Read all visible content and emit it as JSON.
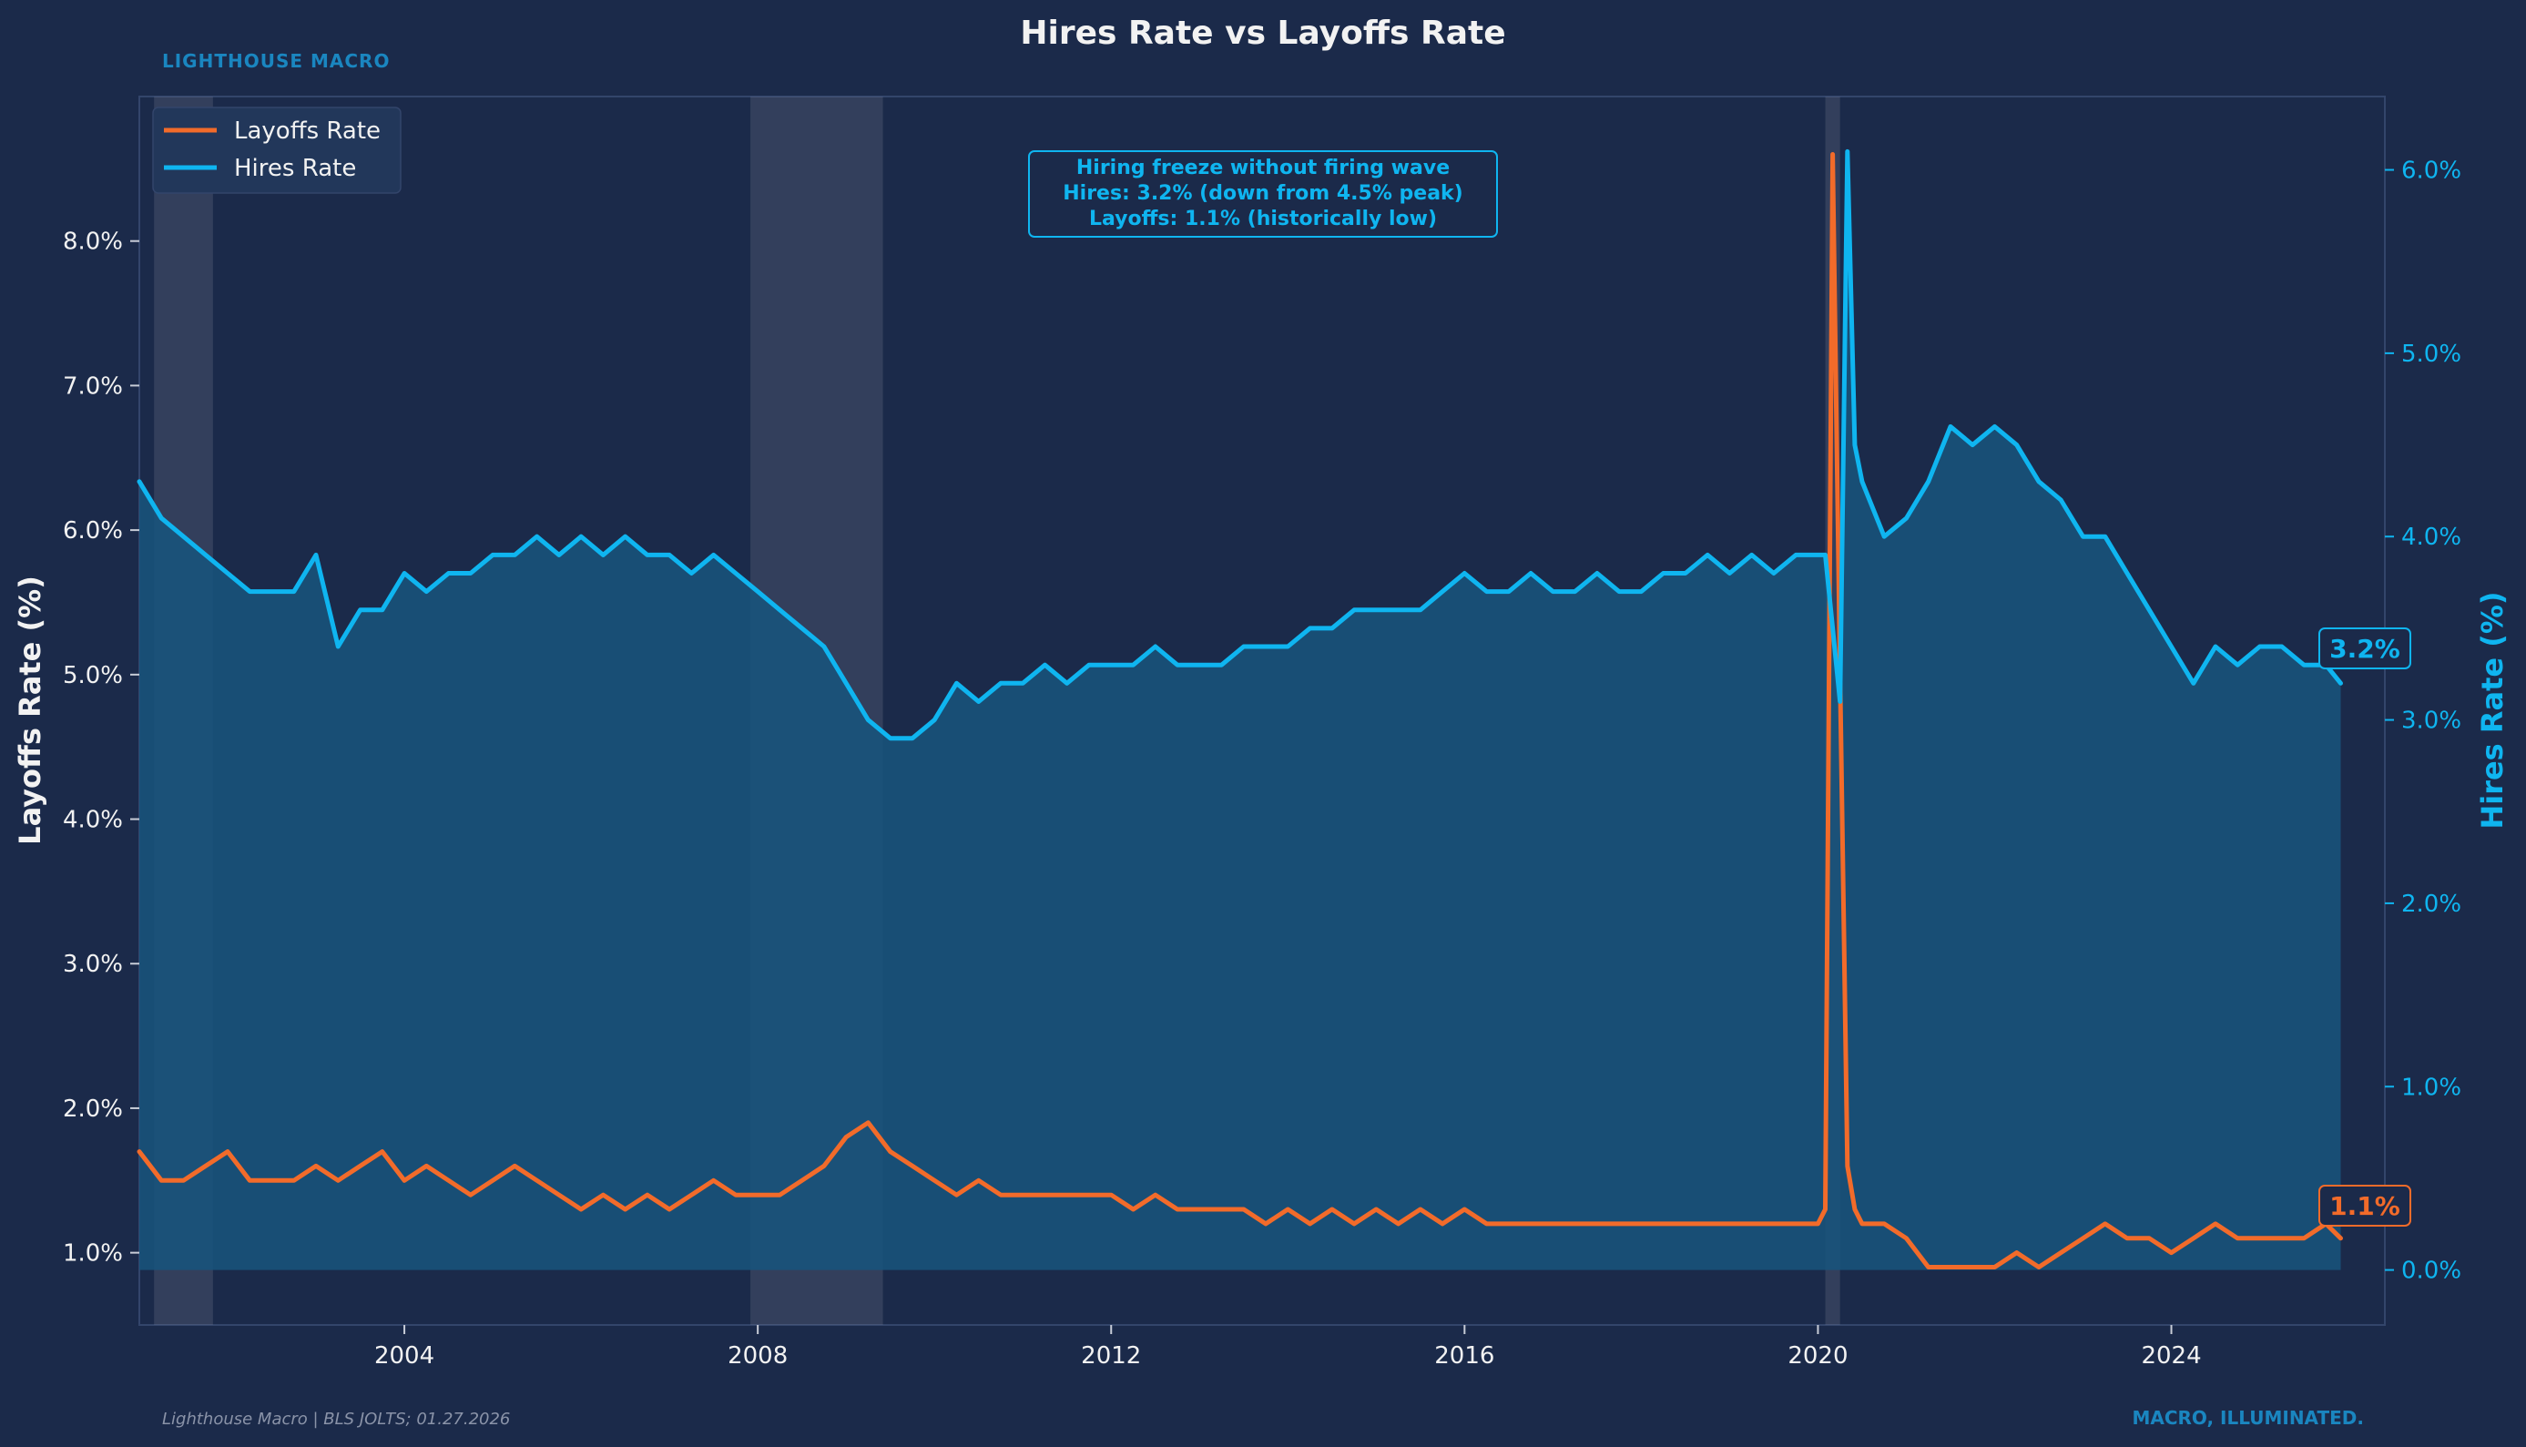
{
  "header": {
    "brand": "LIGHTHOUSE MACRO"
  },
  "footer": {
    "source": "Lighthouse Macro | BLS JOLTS; 01.27.2026",
    "tagline": "MACRO, ILLUMINATED."
  },
  "annotation": {
    "lines": [
      "Hiring freeze without firing wave",
      "Hires: 3.2% (down from 4.5% peak)",
      "Layoffs: 1.1% (historically low)"
    ]
  },
  "colors": {
    "background": "#1b2a4a",
    "layoffs": "#f26b2a",
    "hires": "#0fb5f0",
    "hires_fill": "#17557c",
    "recession": "#8a8fa0",
    "brand": "#1a86c0",
    "text": "#f2f2f2"
  },
  "chart_data": {
    "type": "line",
    "title": "Hires Rate vs Layoffs Rate",
    "x_ticks": [
      "2004",
      "2008",
      "2012",
      "2016",
      "2020",
      "2024"
    ],
    "x_range": [
      "2001-01",
      "2026-06"
    ],
    "y_left": {
      "label": "Layoffs Rate (%)",
      "range": [
        0.5,
        9.0
      ],
      "ticks": [
        "1.0%",
        "2.0%",
        "3.0%",
        "4.0%",
        "5.0%",
        "6.0%",
        "7.0%",
        "8.0%"
      ]
    },
    "y_right": {
      "label": "Hires Rate (%)",
      "range": [
        -0.3,
        6.4
      ],
      "ticks": [
        "0.0%",
        "1.0%",
        "2.0%",
        "3.0%",
        "4.0%",
        "5.0%",
        "6.0%"
      ]
    },
    "legend": {
      "position": "top-left",
      "entries": [
        "Layoffs Rate",
        "Hires Rate"
      ]
    },
    "recessions": [
      {
        "start": "2001-03",
        "end": "2001-11"
      },
      {
        "start": "2007-12",
        "end": "2009-06"
      },
      {
        "start": "2020-02",
        "end": "2020-04"
      }
    ],
    "end_labels": {
      "hires": "3.2%",
      "layoffs": "1.1%"
    },
    "series": [
      {
        "name": "Hires Rate",
        "axis": "right",
        "x": [
          "2001-01",
          "2001-04",
          "2001-07",
          "2001-10",
          "2002-01",
          "2002-04",
          "2002-07",
          "2002-10",
          "2003-01",
          "2003-04",
          "2003-07",
          "2003-10",
          "2004-01",
          "2004-04",
          "2004-07",
          "2004-10",
          "2005-01",
          "2005-04",
          "2005-07",
          "2005-10",
          "2006-01",
          "2006-04",
          "2006-07",
          "2006-10",
          "2007-01",
          "2007-04",
          "2007-07",
          "2007-10",
          "2008-01",
          "2008-04",
          "2008-07",
          "2008-10",
          "2009-01",
          "2009-04",
          "2009-07",
          "2009-10",
          "2010-01",
          "2010-04",
          "2010-07",
          "2010-10",
          "2011-01",
          "2011-04",
          "2011-07",
          "2011-10",
          "2012-01",
          "2012-04",
          "2012-07",
          "2012-10",
          "2013-01",
          "2013-04",
          "2013-07",
          "2013-10",
          "2014-01",
          "2014-04",
          "2014-07",
          "2014-10",
          "2015-01",
          "2015-04",
          "2015-07",
          "2015-10",
          "2016-01",
          "2016-04",
          "2016-07",
          "2016-10",
          "2017-01",
          "2017-04",
          "2017-07",
          "2017-10",
          "2018-01",
          "2018-04",
          "2018-07",
          "2018-10",
          "2019-01",
          "2019-04",
          "2019-07",
          "2019-10",
          "2020-01",
          "2020-02",
          "2020-03",
          "2020-04",
          "2020-05",
          "2020-06",
          "2020-07",
          "2020-10",
          "2021-01",
          "2021-04",
          "2021-07",
          "2021-10",
          "2022-01",
          "2022-04",
          "2022-07",
          "2022-10",
          "2023-01",
          "2023-04",
          "2023-07",
          "2023-10",
          "2024-01",
          "2024-04",
          "2024-07",
          "2024-10",
          "2025-01",
          "2025-04",
          "2025-07",
          "2025-10",
          "2025-12"
        ],
        "values": [
          4.3,
          4.1,
          4.0,
          3.9,
          3.8,
          3.7,
          3.7,
          3.7,
          3.9,
          3.4,
          3.6,
          3.6,
          3.8,
          3.7,
          3.8,
          3.8,
          3.9,
          3.9,
          4.0,
          3.9,
          4.0,
          3.9,
          4.0,
          3.9,
          3.9,
          3.8,
          3.9,
          3.8,
          3.7,
          3.6,
          3.5,
          3.4,
          3.2,
          3.0,
          2.9,
          2.9,
          3.0,
          3.2,
          3.1,
          3.2,
          3.2,
          3.3,
          3.2,
          3.3,
          3.3,
          3.3,
          3.4,
          3.3,
          3.3,
          3.3,
          3.4,
          3.4,
          3.4,
          3.5,
          3.5,
          3.6,
          3.6,
          3.6,
          3.6,
          3.7,
          3.8,
          3.7,
          3.7,
          3.8,
          3.7,
          3.7,
          3.8,
          3.7,
          3.7,
          3.8,
          3.8,
          3.9,
          3.8,
          3.9,
          3.8,
          3.9,
          3.9,
          3.9,
          3.5,
          3.1,
          6.1,
          4.5,
          4.3,
          4.0,
          4.1,
          4.3,
          4.6,
          4.5,
          4.6,
          4.5,
          4.3,
          4.2,
          4.0,
          4.0,
          3.8,
          3.6,
          3.4,
          3.2,
          3.4,
          3.3,
          3.4,
          3.4,
          3.3,
          3.3,
          3.2
        ]
      },
      {
        "name": "Layoffs Rate",
        "axis": "left",
        "x": [
          "2001-01",
          "2001-04",
          "2001-07",
          "2001-10",
          "2002-01",
          "2002-04",
          "2002-07",
          "2002-10",
          "2003-01",
          "2003-04",
          "2003-07",
          "2003-10",
          "2004-01",
          "2004-04",
          "2004-07",
          "2004-10",
          "2005-01",
          "2005-04",
          "2005-07",
          "2005-10",
          "2006-01",
          "2006-04",
          "2006-07",
          "2006-10",
          "2007-01",
          "2007-04",
          "2007-07",
          "2007-10",
          "2008-01",
          "2008-04",
          "2008-07",
          "2008-10",
          "2009-01",
          "2009-04",
          "2009-07",
          "2009-10",
          "2010-01",
          "2010-04",
          "2010-07",
          "2010-10",
          "2011-01",
          "2011-04",
          "2011-07",
          "2011-10",
          "2012-01",
          "2012-04",
          "2012-07",
          "2012-10",
          "2013-01",
          "2013-04",
          "2013-07",
          "2013-10",
          "2014-01",
          "2014-04",
          "2014-07",
          "2014-10",
          "2015-01",
          "2015-04",
          "2015-07",
          "2015-10",
          "2016-01",
          "2016-04",
          "2016-07",
          "2016-10",
          "2017-01",
          "2017-04",
          "2017-07",
          "2017-10",
          "2018-01",
          "2018-04",
          "2018-07",
          "2018-10",
          "2019-01",
          "2019-04",
          "2019-07",
          "2019-10",
          "2020-01",
          "2020-02",
          "2020-03",
          "2020-04",
          "2020-05",
          "2020-06",
          "2020-07",
          "2020-10",
          "2021-01",
          "2021-04",
          "2021-07",
          "2021-10",
          "2022-01",
          "2022-04",
          "2022-07",
          "2022-10",
          "2023-01",
          "2023-04",
          "2023-07",
          "2023-10",
          "2024-01",
          "2024-04",
          "2024-07",
          "2024-10",
          "2025-01",
          "2025-04",
          "2025-07",
          "2025-10",
          "2025-12"
        ],
        "values": [
          1.7,
          1.5,
          1.5,
          1.6,
          1.7,
          1.5,
          1.5,
          1.5,
          1.6,
          1.5,
          1.6,
          1.7,
          1.5,
          1.6,
          1.5,
          1.4,
          1.5,
          1.6,
          1.5,
          1.4,
          1.3,
          1.4,
          1.3,
          1.4,
          1.3,
          1.4,
          1.5,
          1.4,
          1.4,
          1.4,
          1.5,
          1.6,
          1.8,
          1.9,
          1.7,
          1.6,
          1.5,
          1.4,
          1.5,
          1.4,
          1.4,
          1.4,
          1.4,
          1.4,
          1.4,
          1.3,
          1.4,
          1.3,
          1.3,
          1.3,
          1.3,
          1.2,
          1.3,
          1.2,
          1.3,
          1.2,
          1.3,
          1.2,
          1.3,
          1.2,
          1.3,
          1.2,
          1.2,
          1.2,
          1.2,
          1.2,
          1.2,
          1.2,
          1.2,
          1.2,
          1.2,
          1.2,
          1.2,
          1.2,
          1.2,
          1.2,
          1.2,
          1.3,
          8.6,
          5.0,
          1.6,
          1.3,
          1.2,
          1.2,
          1.1,
          0.9,
          0.9,
          0.9,
          0.9,
          1.0,
          0.9,
          1.0,
          1.1,
          1.2,
          1.1,
          1.1,
          1.0,
          1.1,
          1.2,
          1.1,
          1.1,
          1.1,
          1.1,
          1.2,
          1.1
        ]
      }
    ]
  }
}
